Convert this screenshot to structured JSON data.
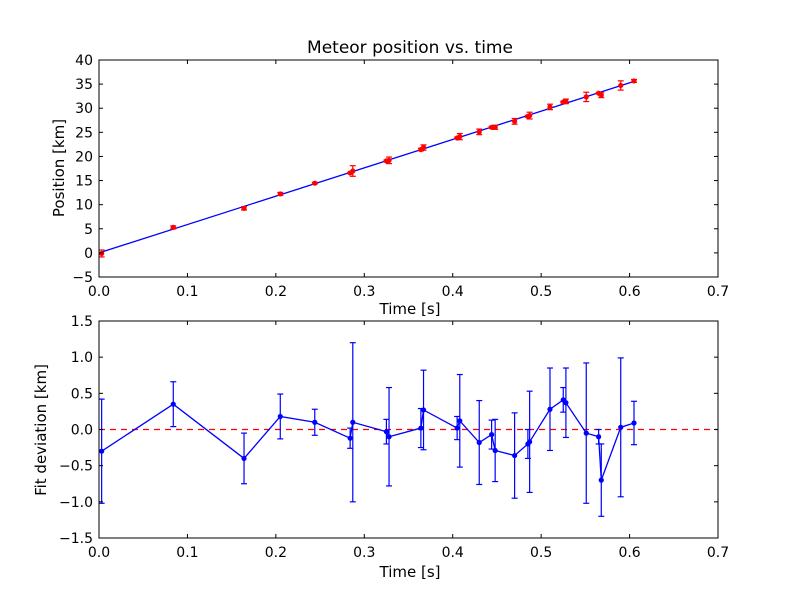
{
  "chart_data": [
    {
      "type": "scatter",
      "title": "Meteor position vs. time",
      "xlabel": "Time [s]",
      "ylabel": "Position [km]",
      "xlim": [
        0,
        0.7
      ],
      "ylim": [
        -5,
        40
      ],
      "xticks": [
        "0.0",
        "0.1",
        "0.2",
        "0.3",
        "0.4",
        "0.5",
        "0.6",
        "0.7"
      ],
      "yticks": [
        "−5",
        "0",
        "5",
        "10",
        "15",
        "20",
        "25",
        "30",
        "35",
        "40"
      ],
      "grid": false,
      "marker_color": "#ff0000",
      "line_color": "#0000ff",
      "fit_line": {
        "x": [
          0.0,
          0.605
        ],
        "y": [
          0.0,
          35.57
        ]
      },
      "x": [
        0.003,
        0.084,
        0.164,
        0.205,
        0.244,
        0.284,
        0.287,
        0.325,
        0.328,
        0.364,
        0.367,
        0.405,
        0.408,
        0.43,
        0.444,
        0.448,
        0.47,
        0.485,
        0.487,
        0.51,
        0.525,
        0.528,
        0.551,
        0.565,
        0.568,
        0.59,
        0.605
      ],
      "y": [
        -0.12,
        5.29,
        9.24,
        12.23,
        14.45,
        16.58,
        16.98,
        19.08,
        19.19,
        21.42,
        21.85,
        23.83,
        24.11,
        25.1,
        26.04,
        26.05,
        27.28,
        28.32,
        28.47,
        30.27,
        31.28,
        31.42,
        32.35,
        33.12,
        32.7,
        34.72,
        35.66
      ],
      "yerr": [
        0.72,
        0.31,
        0.35,
        0.31,
        0.18,
        0.14,
        1.1,
        0.17,
        0.68,
        0.27,
        0.55,
        0.16,
        0.64,
        0.58,
        0.2,
        0.43,
        0.59,
        0.2,
        0.7,
        0.57,
        0.17,
        0.48,
        0.97,
        0.1,
        0.5,
        0.96,
        0.3
      ]
    },
    {
      "type": "line",
      "title": "",
      "xlabel": "Time [s]",
      "ylabel": "Fit deviation [km]",
      "xlim": [
        0,
        0.7
      ],
      "ylim": [
        -1.5,
        1.5
      ],
      "xticks": [
        "0.0",
        "0.1",
        "0.2",
        "0.3",
        "0.4",
        "0.5",
        "0.6",
        "0.7"
      ],
      "yticks": [
        "−1.5",
        "−1.0",
        "−0.5",
        "0.0",
        "0.5",
        "1.0",
        "1.5"
      ],
      "grid": false,
      "line_color": "#0000ff",
      "zero_line_color": "#ff0000",
      "x": [
        0.003,
        0.084,
        0.164,
        0.205,
        0.244,
        0.284,
        0.287,
        0.325,
        0.328,
        0.364,
        0.367,
        0.405,
        0.408,
        0.43,
        0.444,
        0.448,
        0.47,
        0.485,
        0.487,
        0.51,
        0.525,
        0.528,
        0.551,
        0.565,
        0.568,
        0.59,
        0.605
      ],
      "y": [
        -0.3,
        0.35,
        -0.4,
        0.18,
        0.1,
        -0.12,
        0.1,
        -0.03,
        -0.1,
        0.02,
        0.27,
        0.02,
        0.12,
        -0.18,
        -0.07,
        -0.29,
        -0.36,
        -0.2,
        -0.17,
        0.28,
        0.41,
        0.37,
        -0.05,
        -0.1,
        -0.7,
        0.03,
        0.09
      ],
      "yerr": [
        0.72,
        0.31,
        0.35,
        0.31,
        0.18,
        0.14,
        1.1,
        0.17,
        0.68,
        0.27,
        0.55,
        0.16,
        0.64,
        0.58,
        0.2,
        0.43,
        0.59,
        0.2,
        0.7,
        0.57,
        0.17,
        0.48,
        0.97,
        0.1,
        0.5,
        0.96,
        0.3
      ]
    }
  ]
}
